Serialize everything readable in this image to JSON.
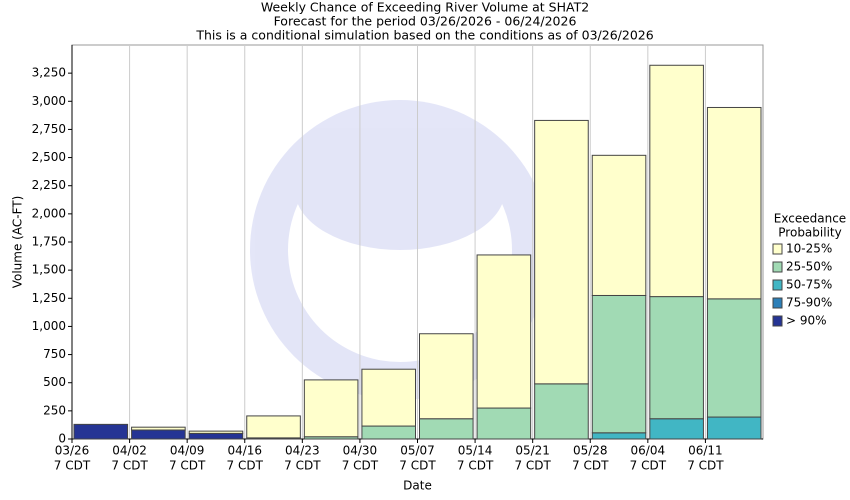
{
  "chart_data": {
    "type": "stacked-bar",
    "title": [
      "Weekly Chance of Exceeding River Volume at SHAT2",
      "Forecast for the period 03/26/2026 - 06/24/2026",
      "This is a conditional simulation based on the conditions as of 03/26/2026"
    ],
    "y_label": "Volume (AC-FT)",
    "x_label": "Date",
    "legend_title": [
      "Exceedance",
      "Probability"
    ],
    "categories": [
      [
        "03/26",
        "7 CDT"
      ],
      [
        "04/02",
        "7 CDT"
      ],
      [
        "04/09",
        "7 CDT"
      ],
      [
        "04/16",
        "7 CDT"
      ],
      [
        "04/23",
        "7 CDT"
      ],
      [
        "04/30",
        "7 CDT"
      ],
      [
        "05/07",
        "7 CDT"
      ],
      [
        "05/14",
        "7 CDT"
      ],
      [
        "05/21",
        "7 CDT"
      ],
      [
        "05/28",
        "7 CDT"
      ],
      [
        "06/04",
        "7 CDT"
      ],
      [
        "06/11",
        "7 CDT"
      ]
    ],
    "series": [
      {
        "name": "> 90%",
        "color": "#253494",
        "values": [
          130,
          80,
          50,
          10,
          0,
          0,
          0,
          0,
          0,
          0,
          0,
          0
        ]
      },
      {
        "name": "75-90%",
        "color": "#2c7fb8",
        "values": [
          0,
          0,
          0,
          0,
          0,
          0,
          0,
          0,
          0,
          0,
          0,
          0
        ]
      },
      {
        "name": "50-75%",
        "color": "#41b6c4",
        "values": [
          0,
          0,
          0,
          0,
          0,
          0,
          0,
          0,
          0,
          55,
          180,
          195
        ]
      },
      {
        "name": "25-50%",
        "color": "#a1dab4",
        "values": [
          0,
          0,
          0,
          0,
          20,
          115,
          180,
          275,
          490,
          1220,
          1085,
          1050
        ]
      },
      {
        "name": "10-25%",
        "color": "#ffffcc",
        "values": [
          0,
          25,
          20,
          195,
          505,
          505,
          755,
          1360,
          2340,
          1245,
          2055,
          1700
        ]
      }
    ],
    "ylim": [
      0,
      3500
    ],
    "yticks": [
      0,
      250,
      500,
      750,
      {
        "value": 1000,
        "label": "1,000"
      },
      {
        "value": 1250,
        "label": "1,250"
      },
      {
        "value": 1500,
        "label": "1,500"
      },
      {
        "value": 1750,
        "label": "1,750"
      },
      {
        "value": 2000,
        "label": "2,000"
      },
      {
        "value": 2250,
        "label": "2,250"
      },
      {
        "value": 2500,
        "label": "2,500"
      },
      {
        "value": 2750,
        "label": "2,750"
      },
      {
        "value": 3000,
        "label": "3,000"
      },
      {
        "value": 3250,
        "label": "3,250"
      }
    ],
    "grid": true
  }
}
